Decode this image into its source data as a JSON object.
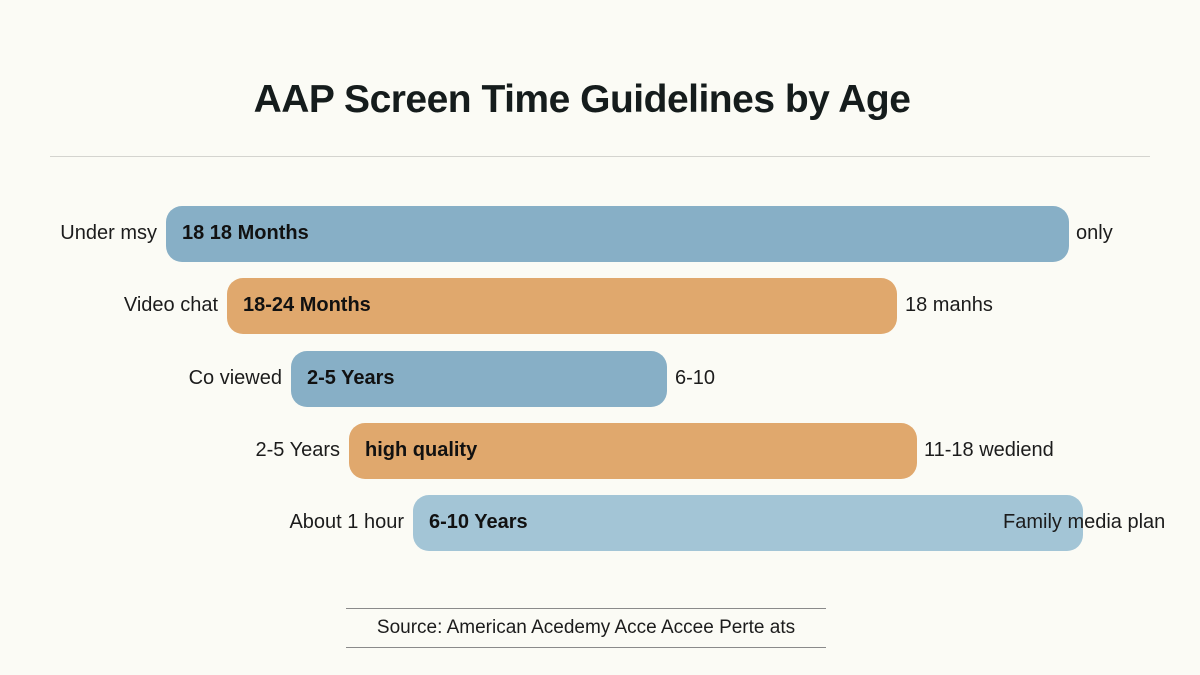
{
  "chart_data": {
    "type": "bar",
    "title": "AAP Screen Time Guidelines by Age",
    "rows": [
      {
        "left_label": "Under msy",
        "bar_label": "18 18 Months",
        "right_label": "only",
        "color": "#87afc6"
      },
      {
        "left_label": "Video chat",
        "bar_label": "18-24 Months",
        "right_label": "18 manhs",
        "color": "#e0a86d"
      },
      {
        "left_label": "Co viewed",
        "bar_label": "2-5 Years",
        "right_label": "6-10",
        "color": "#87afc6"
      },
      {
        "left_label": "2-5 Years",
        "bar_label": "high quality",
        "right_label": "11-18 wediend",
        "color": "#e0a86d"
      },
      {
        "left_label": "About 1 hour",
        "bar_label": "6-10 Years",
        "right_label": "Family media plan",
        "color": "#a3c5d6"
      }
    ]
  },
  "source": "Source: American Acedemy Acce Accee Perte ats"
}
